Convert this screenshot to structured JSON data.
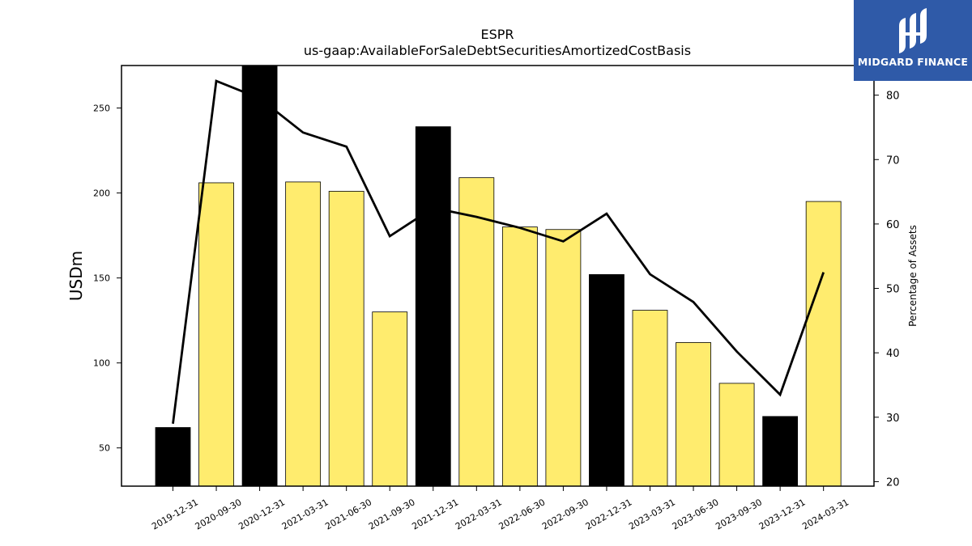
{
  "chart_data": {
    "type": "bar",
    "title": "ESPR",
    "subtitle": "us-gaap:AvailableForSaleDebtSecuritiesAmortizedCostBasis",
    "ylabel": "USDm",
    "y2label": "Percentage of Assets",
    "categories": [
      "2019-12-31",
      "2020-09-30",
      "2020-12-31",
      "2021-03-31",
      "2021-06-30",
      "2021-09-30",
      "2021-12-31",
      "2022-03-31",
      "2022-06-30",
      "2022-09-30",
      "2022-12-31",
      "2023-03-31",
      "2023-06-30",
      "2023-09-30",
      "2023-12-31",
      "2024-03-31"
    ],
    "series": [
      {
        "type": "bar",
        "values": [
          62,
          206,
          275,
          206.5,
          201,
          130,
          239,
          209,
          180,
          178.5,
          152,
          131,
          112,
          88,
          68.5,
          195
        ],
        "colors": [
          "#000000",
          "#ffec6e",
          "#000000",
          "#ffec6e",
          "#ffec6e",
          "#ffec6e",
          "#000000",
          "#ffec6e",
          "#ffec6e",
          "#ffec6e",
          "#000000",
          "#ffec6e",
          "#ffec6e",
          "#ffec6e",
          "#000000",
          "#ffec6e"
        ]
      },
      {
        "type": "line",
        "axis": "right",
        "values": [
          29,
          82.2,
          79.5,
          74.2,
          72.0,
          58.1,
          62.5,
          61.1,
          59.4,
          57.3,
          61.6,
          52.2,
          47.9,
          40.2,
          33.5,
          52.5
        ],
        "color": "#000000"
      }
    ],
    "ylim": [
      27.5,
      275
    ],
    "yticks": [
      50,
      100,
      150,
      200,
      250
    ],
    "y2lim": [
      19.3,
      84.6
    ],
    "y2ticks": [
      20,
      30,
      40,
      50,
      60,
      70,
      80
    ],
    "grid": false,
    "legend": "none"
  },
  "logo": {
    "text": "MIDGARD FINANCE",
    "background": "#2f5aa8",
    "icon": "midgard-logo-icon"
  }
}
